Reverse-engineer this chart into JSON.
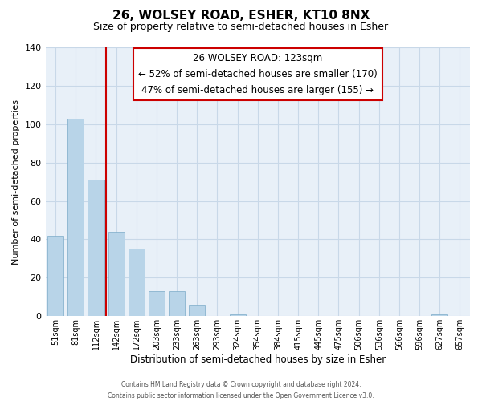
{
  "title": "26, WOLSEY ROAD, ESHER, KT10 8NX",
  "subtitle": "Size of property relative to semi-detached houses in Esher",
  "xlabel": "Distribution of semi-detached houses by size in Esher",
  "ylabel": "Number of semi-detached properties",
  "bar_labels": [
    "51sqm",
    "81sqm",
    "112sqm",
    "142sqm",
    "172sqm",
    "203sqm",
    "233sqm",
    "263sqm",
    "293sqm",
    "324sqm",
    "354sqm",
    "384sqm",
    "415sqm",
    "445sqm",
    "475sqm",
    "506sqm",
    "536sqm",
    "566sqm",
    "596sqm",
    "627sqm",
    "657sqm"
  ],
  "bar_values": [
    42,
    103,
    71,
    44,
    35,
    13,
    13,
    6,
    0,
    1,
    0,
    0,
    0,
    0,
    0,
    0,
    0,
    0,
    0,
    1,
    0
  ],
  "bar_color": "#b8d4e8",
  "bar_edge_color": "#7aaac8",
  "vline_color": "#cc0000",
  "ylim": [
    0,
    140
  ],
  "yticks": [
    0,
    20,
    40,
    60,
    80,
    100,
    120,
    140
  ],
  "annotation_title": "26 WOLSEY ROAD: 123sqm",
  "annotation_line1": "← 52% of semi-detached houses are smaller (170)",
  "annotation_line2": "47% of semi-detached houses are larger (155) →",
  "annotation_box_facecolor": "#ffffff",
  "annotation_box_edgecolor": "#cc0000",
  "footer1": "Contains HM Land Registry data © Crown copyright and database right 2024.",
  "footer2": "Contains public sector information licensed under the Open Government Licence v3.0.",
  "background_color": "#ffffff",
  "plot_bg_color": "#e8f0f8",
  "grid_color": "#c8d8e8",
  "title_fontsize": 11,
  "subtitle_fontsize": 9
}
